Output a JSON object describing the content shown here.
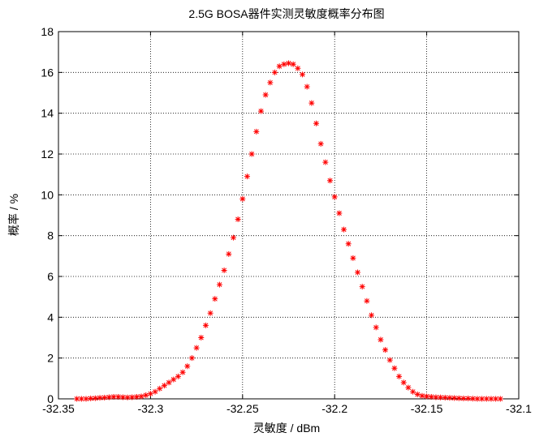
{
  "chart_data": {
    "type": "scatter",
    "title": "2.5G BOSA器件实测灵敏度概率分布图",
    "xlabel": "灵敏度 / dBm",
    "ylabel": "概率 / %",
    "xlim": [
      -32.35,
      -32.1
    ],
    "ylim": [
      0,
      18
    ],
    "grid": true,
    "x_ticks": [
      "-32.35",
      "-32.3",
      "-32.25",
      "-32.2",
      "-32.15",
      "-32.1"
    ],
    "y_ticks": [
      "0",
      "2",
      "4",
      "6",
      "8",
      "10",
      "12",
      "14",
      "16",
      "18"
    ],
    "marker": "*",
    "marker_color": "#ff0000",
    "series": [
      {
        "x": [
          -32.34,
          -32.3375,
          -32.335,
          -32.3325,
          -32.33,
          -32.3275,
          -32.325,
          -32.3225,
          -32.32,
          -32.3175,
          -32.315,
          -32.3125,
          -32.31,
          -32.3075,
          -32.305,
          -32.3025,
          -32.3,
          -32.2975,
          -32.295,
          -32.2925,
          -32.29,
          -32.2875,
          -32.285,
          -32.2825,
          -32.28,
          -32.2775,
          -32.275,
          -32.2725,
          -32.27,
          -32.2675,
          -32.265,
          -32.2625,
          -32.26,
          -32.2575,
          -32.255,
          -32.2525,
          -32.25,
          -32.2475,
          -32.245,
          -32.2425,
          -32.24,
          -32.2375,
          -32.235,
          -32.2325,
          -32.23,
          -32.2275,
          -32.225,
          -32.2225,
          -32.22,
          -32.2175,
          -32.215,
          -32.2125,
          -32.21,
          -32.2075,
          -32.205,
          -32.2025,
          -32.2,
          -32.1975,
          -32.195,
          -32.1925,
          -32.19,
          -32.1875,
          -32.185,
          -32.1825,
          -32.18,
          -32.1775,
          -32.175,
          -32.1725,
          -32.17,
          -32.1675,
          -32.165,
          -32.1625,
          -32.16,
          -32.1575,
          -32.155,
          -32.1525,
          -32.15,
          -32.1475,
          -32.145,
          -32.1425,
          -32.14,
          -32.1375,
          -32.135,
          -32.1325,
          -32.13,
          -32.1275,
          -32.125,
          -32.1225,
          -32.12,
          -32.1175,
          -32.115,
          -32.1125,
          -32.11
        ],
        "y": [
          0.0,
          0.0,
          0.0,
          0.02,
          0.03,
          0.05,
          0.06,
          0.08,
          0.1,
          0.1,
          0.08,
          0.07,
          0.08,
          0.1,
          0.12,
          0.18,
          0.25,
          0.35,
          0.5,
          0.65,
          0.8,
          0.95,
          1.1,
          1.3,
          1.6,
          2.0,
          2.5,
          3.0,
          3.6,
          4.2,
          4.9,
          5.6,
          6.3,
          7.1,
          7.9,
          8.8,
          9.8,
          10.9,
          12.0,
          13.1,
          14.1,
          14.9,
          15.5,
          16.0,
          16.3,
          16.4,
          16.45,
          16.4,
          16.2,
          15.9,
          15.3,
          14.5,
          13.5,
          12.5,
          11.6,
          10.7,
          9.9,
          9.1,
          8.3,
          7.6,
          6.9,
          6.2,
          5.5,
          4.8,
          4.1,
          3.5,
          2.9,
          2.4,
          1.9,
          1.5,
          1.1,
          0.8,
          0.55,
          0.35,
          0.22,
          0.15,
          0.12,
          0.1,
          0.08,
          0.07,
          0.06,
          0.05,
          0.04,
          0.03,
          0.02,
          0.02,
          0.01,
          0.0,
          0.0,
          0.0,
          0.0,
          0.0,
          0.0
        ]
      }
    ]
  }
}
